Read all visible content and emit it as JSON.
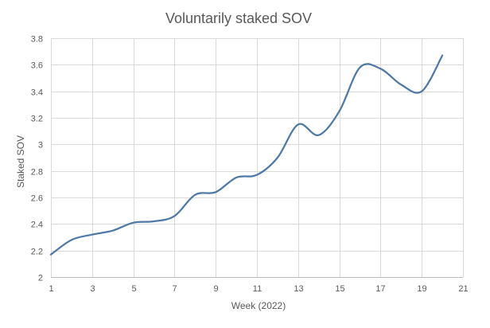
{
  "chart_data": {
    "type": "line",
    "title": "Voluntarily staked SOV",
    "xlabel": "Week (2022)",
    "ylabel": "Staked SOV",
    "xlim": [
      1,
      21
    ],
    "ylim": [
      2,
      3.8
    ],
    "x_ticks": [
      1,
      3,
      5,
      7,
      9,
      11,
      13,
      15,
      17,
      19,
      21
    ],
    "y_ticks": [
      2,
      2.2,
      2.4,
      2.6,
      2.8,
      3,
      3.2,
      3.4,
      3.6,
      3.8
    ],
    "x_tick_labels": [
      "1",
      "3",
      "5",
      "7",
      "9",
      "11",
      "13",
      "15",
      "17",
      "19",
      "21"
    ],
    "y_tick_labels": [
      "2",
      "2.2",
      "2.4",
      "2.6",
      "2.8",
      "3",
      "3.2",
      "3.4",
      "3.6",
      "3.8"
    ],
    "grid": true,
    "smooth": true,
    "line_color": "#4e79a7",
    "series": [
      {
        "name": "Staked SOV",
        "x": [
          1,
          2,
          3,
          4,
          5,
          6,
          7,
          8,
          9,
          10,
          11,
          12,
          13,
          14,
          15,
          16,
          17,
          18,
          19,
          20
        ],
        "values": [
          2.17,
          2.28,
          2.32,
          2.35,
          2.41,
          2.42,
          2.46,
          2.62,
          2.64,
          2.75,
          2.77,
          2.9,
          3.15,
          3.07,
          3.25,
          3.58,
          3.57,
          3.45,
          3.4,
          3.67
        ]
      }
    ]
  }
}
